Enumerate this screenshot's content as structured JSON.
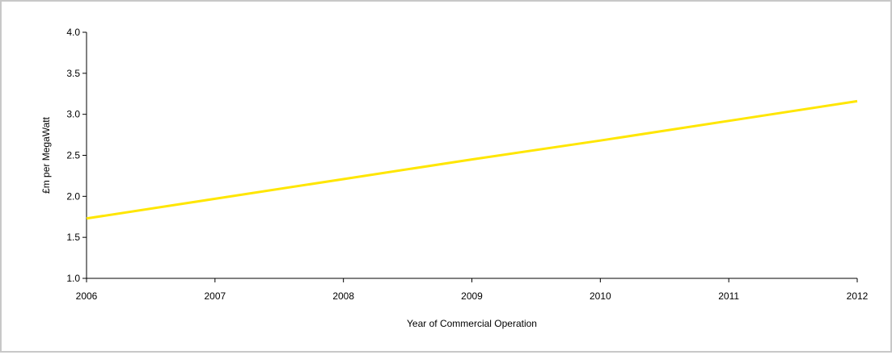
{
  "chart_data": {
    "type": "line",
    "title": "",
    "xlabel": "Year of Commercial Operation",
    "ylabel": "£m per MegaWatt",
    "x": [
      2006,
      2007,
      2008,
      2009,
      2010,
      2011,
      2012
    ],
    "series": [
      {
        "color": "#FFE600",
        "values": [
          1.73,
          1.97,
          2.21,
          2.45,
          2.68,
          2.92,
          3.16
        ]
      }
    ],
    "xlim": [
      2006,
      2012
    ],
    "ylim": [
      1.0,
      4.0
    ],
    "xticks": [
      "2006",
      "2007",
      "2008",
      "2009",
      "2010",
      "2011",
      "2012"
    ],
    "yticks": [
      "1.0",
      "1.5",
      "2.0",
      "2.5",
      "3.0",
      "3.5",
      "4.0"
    ],
    "grid": false,
    "legend": "none"
  }
}
